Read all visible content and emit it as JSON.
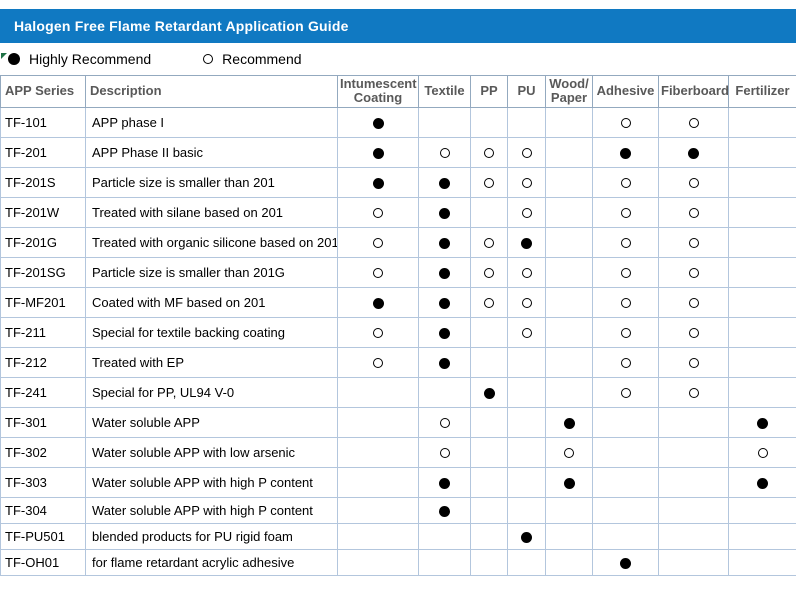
{
  "title": "Halogen Free Flame Retardant Application Guide",
  "legend": {
    "highly": "Highly Recommend",
    "recommend": "Recommend"
  },
  "colors": {
    "banner_bg": "#1079c2",
    "banner_text": "#ffffff",
    "header_text": "#595959",
    "grid_line": "#b3c6dd",
    "corner_marker_green": "#1e7145",
    "dot": "#000000"
  },
  "table": {
    "columns": [
      {
        "key": "series",
        "label": "APP Series"
      },
      {
        "key": "description",
        "label": "Description"
      },
      {
        "key": "intumescent",
        "label": "Intumescent\nCoating"
      },
      {
        "key": "textile",
        "label": "Textile"
      },
      {
        "key": "pp",
        "label": "PP"
      },
      {
        "key": "pu",
        "label": "PU"
      },
      {
        "key": "wood",
        "label": "Wood/\nPaper"
      },
      {
        "key": "adhesive",
        "label": "Adhesive"
      },
      {
        "key": "fiberboard",
        "label": "Fiberboard"
      },
      {
        "key": "fertilizer",
        "label": "Fertilizer"
      }
    ],
    "mark_meaning": {
      "H": "Highly Recommend",
      "R": "Recommend",
      "": "not applicable"
    },
    "rows": [
      {
        "series": "TF-101",
        "description": "APP phase I",
        "marks": [
          "H",
          "",
          "",
          "",
          "",
          "R",
          "R",
          ""
        ]
      },
      {
        "series": "TF-201",
        "description": "APP Phase II basic",
        "marks": [
          "H",
          "R",
          "R",
          "R",
          "",
          "H",
          "H",
          ""
        ]
      },
      {
        "series": "TF-201S",
        "description": "Particle size is smaller than 201",
        "marks": [
          "H",
          "H",
          "R",
          "R",
          "",
          "R",
          "R",
          ""
        ]
      },
      {
        "series": "TF-201W",
        "description": "Treated with silane based on 201",
        "marks": [
          "R",
          "H",
          "",
          "R",
          "",
          "R",
          "R",
          ""
        ]
      },
      {
        "series": "TF-201G",
        "description": "Treated with organic silicone based on 201",
        "marks": [
          "R",
          "H",
          "R",
          "H",
          "",
          "R",
          "R",
          ""
        ]
      },
      {
        "series": "TF-201SG",
        "description": "Particle size is smaller than 201G",
        "marks": [
          "R",
          "H",
          "R",
          "R",
          "",
          "R",
          "R",
          ""
        ]
      },
      {
        "series": "TF-MF201",
        "description": "Coated with MF based on 201",
        "marks": [
          "H",
          "H",
          "R",
          "R",
          "",
          "R",
          "R",
          ""
        ]
      },
      {
        "series": "TF-211",
        "description": "Special for textile backing coating",
        "marks": [
          "R",
          "H",
          "",
          "R",
          "",
          "R",
          "R",
          ""
        ]
      },
      {
        "series": "TF-212",
        "description": "Treated with EP",
        "marks": [
          "R",
          "H",
          "",
          "",
          "",
          "R",
          "R",
          ""
        ]
      },
      {
        "series": "TF-241",
        "description": "Special for PP, UL94 V-0",
        "marks": [
          "",
          "",
          "H",
          "",
          "",
          "R",
          "R",
          ""
        ]
      },
      {
        "series": "TF-301",
        "description": "Water soluble APP",
        "marks": [
          "",
          "R",
          "",
          "",
          "H",
          "",
          "",
          "H"
        ]
      },
      {
        "series": "TF-302",
        "description": "Water soluble APP with low arsenic",
        "marks": [
          "",
          "R",
          "",
          "",
          "R",
          "",
          "",
          "R"
        ]
      },
      {
        "series": "TF-303",
        "description": "Water soluble APP with high P content",
        "marks": [
          "",
          "H",
          "",
          "",
          "H",
          "",
          "",
          "H"
        ]
      },
      {
        "series": "TF-304",
        "description": "Water soluble APP with high P content",
        "marks": [
          "",
          "H",
          "",
          "",
          "",
          "",
          "",
          ""
        ]
      },
      {
        "series": "TF-PU501",
        "description": "blended products for PU rigid foam",
        "marks": [
          "",
          "",
          "",
          "H",
          "",
          "",
          "",
          ""
        ]
      },
      {
        "series": "TF-OH01",
        "description": "for flame retardant acrylic adhesive",
        "marks": [
          "",
          "",
          "",
          "",
          "",
          "H",
          "",
          ""
        ]
      }
    ]
  }
}
